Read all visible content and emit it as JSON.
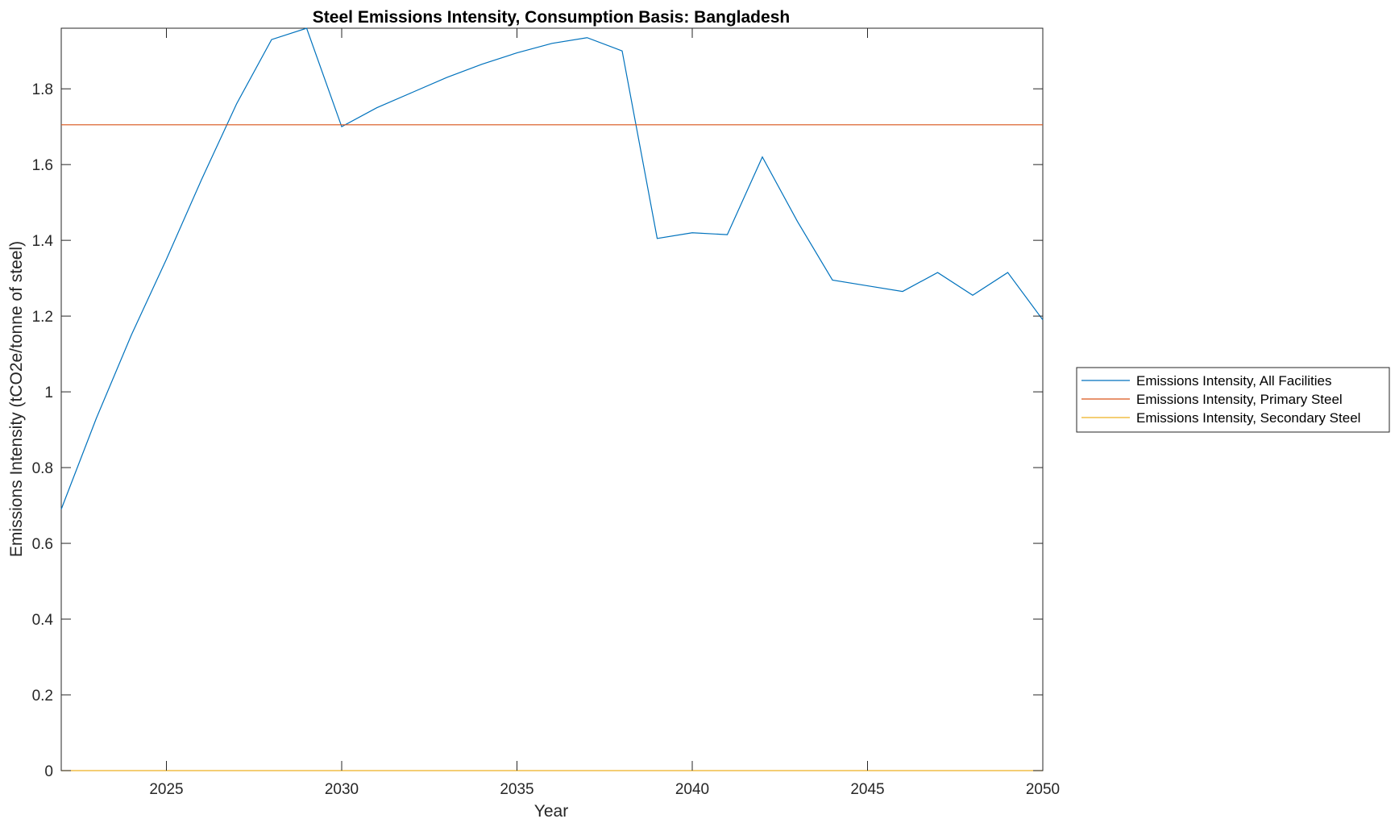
{
  "chart_data": {
    "type": "line",
    "title": "Steel Emissions Intensity, Consumption Basis: Bangladesh",
    "xlabel": "Year",
    "ylabel": "Emissions Intensity (tCO2e/tonne of steel)",
    "xlim": [
      2022,
      2050
    ],
    "ylim": [
      0,
      1.96
    ],
    "xticks": [
      2025,
      2030,
      2035,
      2040,
      2045,
      2050
    ],
    "yticks": [
      0,
      0.2,
      0.4,
      0.6,
      0.8,
      1,
      1.2,
      1.4,
      1.6,
      1.8
    ],
    "ytick_labels": [
      "0",
      "0.2",
      "0.4",
      "0.6",
      "0.8",
      "1",
      "1.2",
      "1.4",
      "1.6",
      "1.8"
    ],
    "grid": false,
    "legend_position": "right-outside",
    "series": [
      {
        "name": "Emissions Intensity, All Facilities",
        "color": "#0072BD",
        "x": [
          2022,
          2023,
          2024,
          2025,
          2026,
          2027,
          2028,
          2029,
          2030,
          2031,
          2032,
          2033,
          2034,
          2035,
          2036,
          2037,
          2038,
          2039,
          2040,
          2041,
          2042,
          2043,
          2044,
          2045,
          2046,
          2047,
          2048,
          2049,
          2050
        ],
        "values": [
          0.69,
          0.93,
          1.15,
          1.35,
          1.56,
          1.76,
          1.93,
          1.96,
          1.7,
          1.75,
          1.79,
          1.83,
          1.865,
          1.895,
          1.92,
          1.935,
          1.9,
          1.405,
          1.42,
          1.415,
          1.62,
          1.45,
          1.295,
          1.28,
          1.265,
          1.315,
          1.255,
          1.315,
          1.19
        ]
      },
      {
        "name": "Emissions Intensity, Primary Steel",
        "color": "#D95319",
        "x": [
          2022,
          2050
        ],
        "values": [
          1.705,
          1.705
        ]
      },
      {
        "name": "Emissions Intensity, Secondary Steel",
        "color": "#EDB120",
        "x": [
          2022,
          2050
        ],
        "values": [
          0,
          0
        ]
      }
    ]
  }
}
